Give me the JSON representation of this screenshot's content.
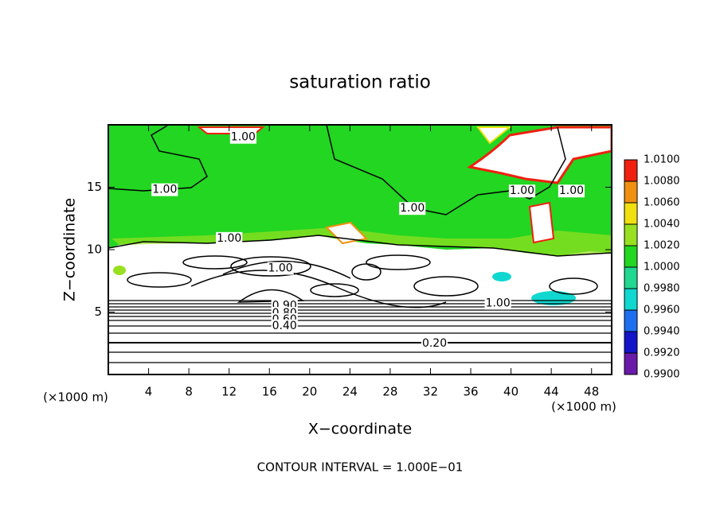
{
  "chart_data": {
    "type": "contour",
    "title": "saturation ratio",
    "x_label": "X−coordinate",
    "y_label": "Z−coordinate",
    "x_unit_left": "(×1000 m)",
    "x_unit_right": "(×1000 m)",
    "footnote": "CONTOUR INTERVAL = 1.000E−01",
    "xlim": [
      0,
      50
    ],
    "ylim": [
      0,
      20
    ],
    "xticks": [
      4,
      8,
      12,
      16,
      20,
      24,
      28,
      32,
      36,
      40,
      44,
      48
    ],
    "yticks": [
      5,
      10,
      15
    ],
    "colorbar": {
      "ticks": [
        {
          "value": 0.99,
          "label": "0.9900"
        },
        {
          "value": 0.992,
          "label": "0.9920"
        },
        {
          "value": 0.994,
          "label": "0.9940"
        },
        {
          "value": 0.996,
          "label": "0.9960"
        },
        {
          "value": 0.998,
          "label": "0.9980"
        },
        {
          "value": 1.0,
          "label": "1.0000"
        },
        {
          "value": 1.002,
          "label": "1.0020"
        },
        {
          "value": 1.004,
          "label": "1.0040"
        },
        {
          "value": 1.006,
          "label": "1.0060"
        },
        {
          "value": 1.008,
          "label": "1.0080"
        },
        {
          "value": 1.01,
          "label": "1.0100"
        }
      ],
      "colors": [
        "#6a1aa8",
        "#1414c8",
        "#1e6ef0",
        "#10d8d0",
        "#20d890",
        "#22d622",
        "#98e020",
        "#f0e010",
        "#f09010",
        "#f02010"
      ],
      "top_color": "#f0a0a0"
    },
    "contour_labels": [
      {
        "label": "1.00",
        "x": 13.4,
        "z": 19.0
      },
      {
        "label": "1.00",
        "x": 5.6,
        "z": 14.8
      },
      {
        "label": "1.00",
        "x": 30.2,
        "z": 13.3
      },
      {
        "label": "1.00",
        "x": 41.1,
        "z": 14.7
      },
      {
        "label": "1.00",
        "x": 46.0,
        "z": 14.7
      },
      {
        "label": "1.00",
        "x": 12.0,
        "z": 10.9
      },
      {
        "label": "1.00",
        "x": 17.1,
        "z": 8.5
      },
      {
        "label": "1.00",
        "x": 38.7,
        "z": 5.7
      },
      {
        "label": "0.90",
        "x": 17.5,
        "z": 5.5
      },
      {
        "label": "0.80",
        "x": 17.5,
        "z": 4.9
      },
      {
        "label": "0.60",
        "x": 17.5,
        "z": 4.4
      },
      {
        "label": "0.40",
        "x": 17.5,
        "z": 3.9
      },
      {
        "label": "0.20",
        "x": 32.4,
        "z": 2.5
      }
    ]
  }
}
